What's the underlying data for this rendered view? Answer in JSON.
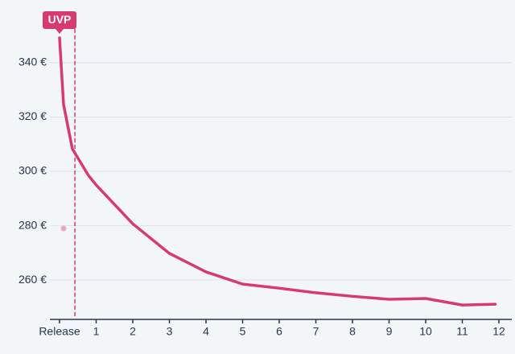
{
  "chart_data": {
    "type": "line",
    "series": [
      {
        "color": "#d63a6e",
        "x": [
          0,
          0.11,
          0.35,
          0.79,
          1,
          2,
          3,
          4,
          5,
          6,
          7,
          8,
          9,
          10,
          11,
          11.9
        ],
        "values": [
          349.2,
          324.6,
          308.3,
          298.5,
          295,
          280.7,
          269.8,
          263,
          258.5,
          257,
          255.3,
          254,
          252.9,
          253.2,
          250.8,
          251.1
        ]
      }
    ],
    "markers": [
      {
        "x": 0.11,
        "value": 279,
        "color": "#eaa6bd"
      }
    ],
    "uvp": {
      "label": "UVP",
      "x": 0.42,
      "color": "#d63a6e"
    },
    "xlim": [
      0,
      12
    ],
    "xticks": [
      {
        "value": 0,
        "label": "Release"
      },
      1,
      2,
      3,
      4,
      5,
      6,
      7,
      8,
      9,
      10,
      11,
      12
    ],
    "ylim": [
      245.5,
      355
    ],
    "yticks": [
      {
        "value": 260,
        "label": "260 €"
      },
      {
        "value": 280,
        "label": "280 €"
      },
      {
        "value": 300,
        "label": "300 €"
      },
      {
        "value": 320,
        "label": "320 €"
      },
      {
        "value": 340,
        "label": "340 €"
      }
    ],
    "grid": true
  }
}
